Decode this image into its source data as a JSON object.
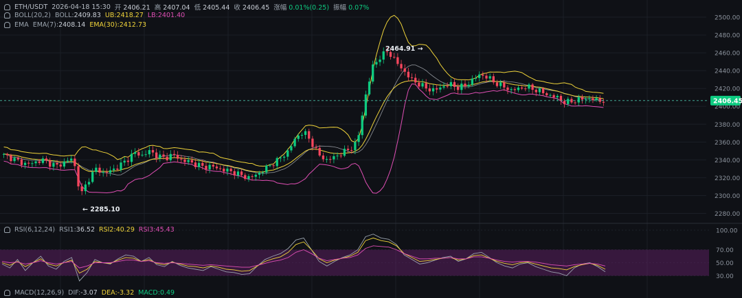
{
  "header": {
    "symbol": "ETH/USDT",
    "datetime": "2026-04-18 15:30",
    "open_label": "开",
    "open": "2406.21",
    "high_label": "高",
    "high": "2407.04",
    "low_label": "低",
    "low": "2405.44",
    "close_label": "收",
    "close": "2406.45",
    "change_label": "涨幅",
    "change": "0.01%(0.25)",
    "amp_label": "振幅",
    "amp": "0.07%"
  },
  "boll": {
    "label": "BOLL(20,2)",
    "mid_label": "BOLL:",
    "mid": "2409.83",
    "ub_label": "UB:",
    "ub": "2418.27",
    "lb_label": "LB:",
    "lb": "2401.40"
  },
  "ema": {
    "label": "EMA",
    "ema7_label": "EMA(7):",
    "ema7": "2408.14",
    "ema30_label": "EMA(30):",
    "ema30": "2412.73"
  },
  "rsi": {
    "label": "RSI(6,12,24)",
    "rsi1_label": "RSI1:",
    "rsi1": "36.52",
    "rsi2_label": "RSI2:",
    "rsi2": "40.29",
    "rsi3_label": "RSI3:",
    "rsi3": "45.43"
  },
  "macd": {
    "label": "MACD(12,26,9)",
    "dif_label": "DIF:",
    "dif": "-3.07",
    "dea_label": "DEA:",
    "dea": "-3.32",
    "macd_label": "MACD:",
    "macd": "0.49"
  },
  "colors": {
    "background": "#0f1116",
    "up": "#0ecb81",
    "down": "#f6465d",
    "boll_band": "#f0d43a",
    "boll_lower": "#e04fb5",
    "rsi_zone": "#5a1f5e",
    "price_tag": "#0ecb81"
  },
  "chart_data": [
    {
      "type": "candlestick",
      "title": "ETH/USDT",
      "y_ticks": [
        "2500.00",
        "2480.00",
        "2460.00",
        "2440.00",
        "2420.00",
        "2400.00",
        "2380.00",
        "2360.00",
        "2340.00",
        "2320.00",
        "2300.00",
        "2280.00"
      ],
      "ylim": [
        2275,
        2510
      ],
      "last_price": "2406.45",
      "max_label": "2464.91",
      "min_label": "2285.10",
      "close_path": [
        2345,
        2342,
        2338,
        2335,
        2337,
        2340,
        2336,
        2333,
        2338,
        2342,
        2300,
        2318,
        2330,
        2325,
        2328,
        2333,
        2340,
        2348,
        2345,
        2350,
        2344,
        2342,
        2346,
        2340,
        2338,
        2335,
        2332,
        2333,
        2330,
        2328,
        2326,
        2322,
        2320,
        2324,
        2330,
        2336,
        2342,
        2350,
        2365,
        2372,
        2360,
        2345,
        2340,
        2343,
        2348,
        2352,
        2360,
        2410,
        2445,
        2456,
        2462,
        2450,
        2440,
        2430,
        2425,
        2420,
        2418,
        2422,
        2425,
        2421,
        2423,
        2430,
        2436,
        2432,
        2426,
        2422,
        2418,
        2420,
        2422,
        2419,
        2416,
        2412,
        2410,
        2404,
        2406,
        2408,
        2409,
        2407,
        2406
      ],
      "grid": true
    },
    {
      "type": "line",
      "title": "RSI(6,12,24)",
      "y_ticks": [
        "100.00",
        "70.00",
        "50.00",
        "30.00"
      ],
      "ylim": [
        20,
        100
      ],
      "band": [
        30,
        70
      ],
      "series": [
        {
          "name": "RSI1",
          "color": "#9aa3ad",
          "values": [
            48,
            42,
            55,
            38,
            50,
            60,
            45,
            40,
            52,
            58,
            22,
            35,
            55,
            50,
            48,
            56,
            62,
            60,
            52,
            58,
            47,
            44,
            52,
            46,
            42,
            40,
            38,
            44,
            40,
            36,
            35,
            32,
            33,
            45,
            55,
            60,
            64,
            72,
            85,
            88,
            70,
            52,
            45,
            52,
            58,
            62,
            70,
            90,
            94,
            88,
            86,
            78,
            62,
            55,
            48,
            50,
            54,
            58,
            60,
            52,
            56,
            64,
            66,
            58,
            50,
            45,
            42,
            48,
            50,
            44,
            40,
            36,
            34,
            30,
            42,
            48,
            50,
            44,
            36
          ]
        },
        {
          "name": "RSI2",
          "color": "#f0d43a",
          "values": [
            50,
            46,
            52,
            44,
            50,
            56,
            48,
            45,
            50,
            54,
            34,
            40,
            52,
            50,
            49,
            54,
            58,
            57,
            52,
            55,
            49,
            47,
            51,
            48,
            45,
            44,
            42,
            45,
            43,
            40,
            39,
            37,
            38,
            45,
            52,
            56,
            59,
            66,
            78,
            82,
            70,
            56,
            50,
            54,
            57,
            60,
            66,
            84,
            88,
            84,
            82,
            76,
            64,
            58,
            52,
            53,
            55,
            57,
            58,
            54,
            56,
            61,
            62,
            57,
            52,
            49,
            47,
            50,
            51,
            48,
            45,
            42,
            41,
            39,
            44,
            47,
            49,
            46,
            40
          ]
        },
        {
          "name": "RSI3",
          "color": "#e04fb5",
          "values": [
            52,
            50,
            51,
            48,
            50,
            53,
            50,
            48,
            50,
            52,
            42,
            45,
            50,
            50,
            50,
            52,
            54,
            54,
            52,
            53,
            50,
            49,
            50,
            49,
            48,
            47,
            46,
            47,
            46,
            45,
            44,
            43,
            43,
            46,
            49,
            52,
            54,
            58,
            66,
            70,
            64,
            57,
            53,
            55,
            57,
            58,
            62,
            72,
            76,
            75,
            74,
            70,
            64,
            60,
            56,
            56,
            57,
            57,
            58,
            56,
            56,
            59,
            59,
            57,
            54,
            52,
            51,
            52,
            52,
            51,
            49,
            47,
            46,
            45,
            47,
            48,
            49,
            48,
            45
          ]
        }
      ]
    },
    {
      "type": "line",
      "title": "MACD(12,26,9)",
      "series": [
        {
          "name": "DIF",
          "values": [
            -3.07
          ]
        },
        {
          "name": "DEA",
          "values": [
            -3.32
          ]
        },
        {
          "name": "MACD",
          "values": [
            0.49
          ]
        }
      ]
    }
  ]
}
